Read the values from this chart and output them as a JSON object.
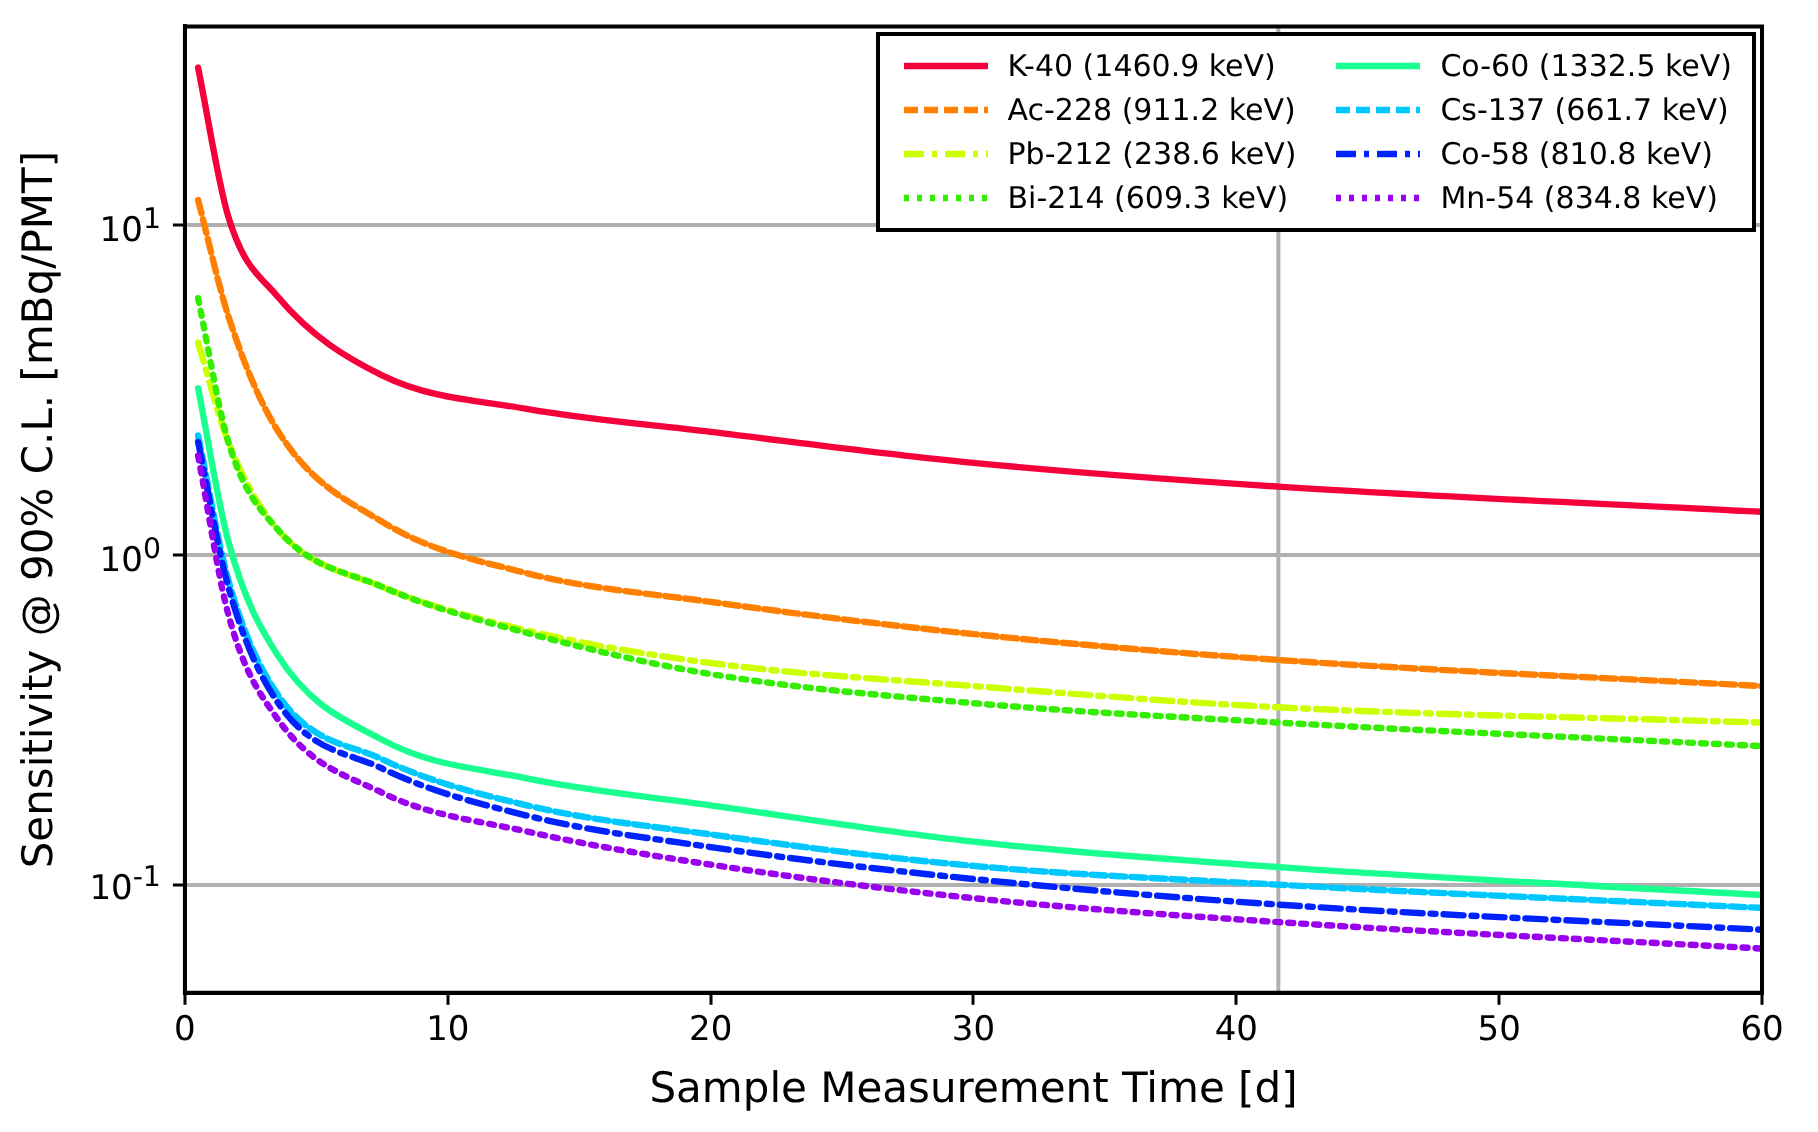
{
  "chart_data": {
    "type": "line",
    "xlabel": "Sample Measurement Time [d]",
    "ylabel": "Sensitivity @ 90% C.L. [mBq/PMT]",
    "x": [
      0.5,
      1.65,
      3.5,
      7.5,
      13,
      20,
      30,
      41.6,
      60
    ],
    "series": [
      {
        "name": "K-40 (1460.9 keV)",
        "color": "#f5003a",
        "line_style": "solid",
        "values": [
          30,
          10.6,
          6.1,
          3.5,
          2.77,
          2.36,
          1.9,
          1.61,
          1.35
        ]
      },
      {
        "name": "Ac-228 (911.2 keV)",
        "color": "#ff8000",
        "line_style": "dashed",
        "values": [
          11.9,
          5.3,
          2.4,
          1.26,
          0.88,
          0.72,
          0.575,
          0.48,
          0.4
        ]
      },
      {
        "name": "Pb-212 (238.6 keV)",
        "color": "#ccff00",
        "line_style": "dashdot",
        "values": [
          4.4,
          2.2,
          1.2,
          0.8,
          0.59,
          0.47,
          0.4,
          0.345,
          0.31
        ]
      },
      {
        "name": "Bi-214 (609.3 keV)",
        "color": "#33ee00",
        "line_style": "dotted",
        "values": [
          6.0,
          2.2,
          1.2,
          0.8,
          0.58,
          0.435,
          0.355,
          0.31,
          0.263
        ]
      },
      {
        "name": "Co-60 (1332.5 keV)",
        "color": "#19ff90",
        "line_style": "solid",
        "values": [
          3.2,
          1.1,
          0.5,
          0.275,
          0.21,
          0.174,
          0.135,
          0.113,
          0.093
        ]
      },
      {
        "name": "Cs-137 (661.7 keV)",
        "color": "#00c8ff",
        "line_style": "dashed",
        "values": [
          2.3,
          0.84,
          0.38,
          0.24,
          0.174,
          0.142,
          0.114,
          0.1,
          0.085
        ]
      },
      {
        "name": "Co-58 (810.8 keV)",
        "color": "#0022ff",
        "line_style": "dashdot",
        "values": [
          2.2,
          0.8,
          0.36,
          0.225,
          0.162,
          0.13,
          0.104,
          0.087,
          0.073
        ]
      },
      {
        "name": "Mn-54 (834.8 keV)",
        "color": "#9900ee",
        "line_style": "dotted",
        "values": [
          2.0,
          0.66,
          0.32,
          0.19,
          0.145,
          0.115,
          0.091,
          0.077,
          0.064
        ]
      }
    ],
    "xlim": [
      0,
      60
    ],
    "xticks": [
      0,
      10,
      20,
      30,
      40,
      50,
      60
    ],
    "ylim": [
      0.047,
      40
    ],
    "log": "y",
    "yticks": [
      {
        "value": 0.1,
        "label": "10$^{-1}$"
      },
      {
        "value": 1,
        "label": "10$^{0}$"
      },
      {
        "value": 10,
        "label": "10$^{1}$"
      }
    ],
    "grid": "y",
    "legend": "top right",
    "marker": "none",
    "ref_lines": [
      {
        "axis": "x",
        "value": 41.6,
        "color": "#b0b0b0"
      }
    ]
  }
}
